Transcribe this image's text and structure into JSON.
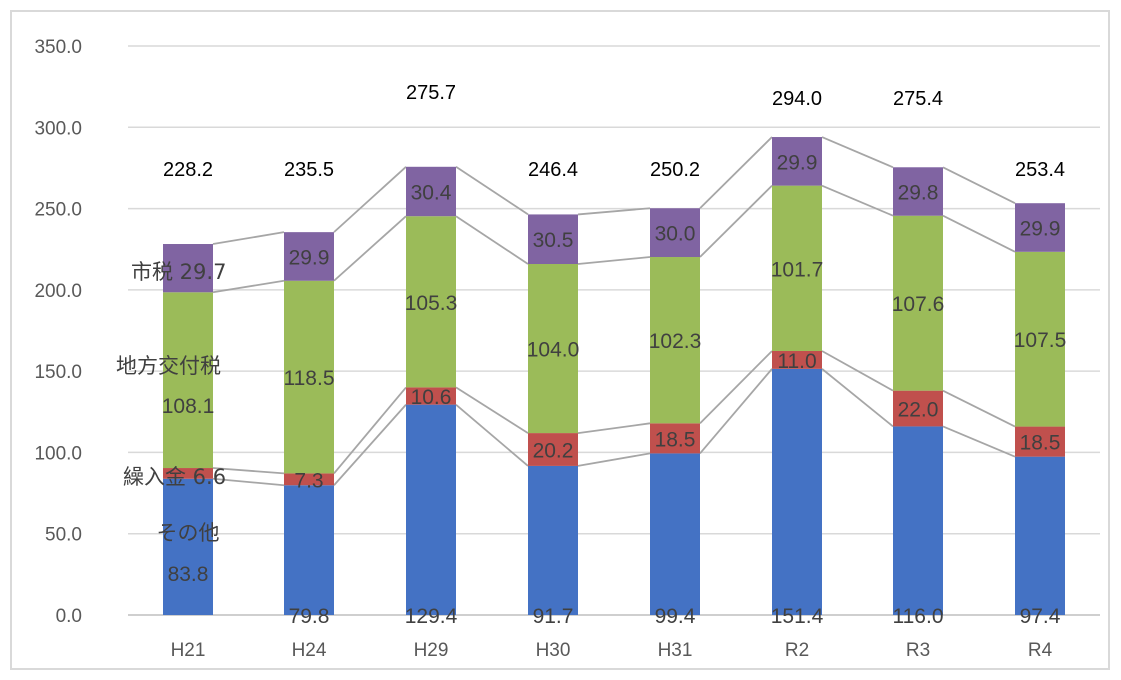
{
  "chart_data": {
    "type": "bar",
    "stacked": true,
    "categories": [
      "H21",
      "H24",
      "H29",
      "H30",
      "H31",
      "R2",
      "R3",
      "R4"
    ],
    "series": [
      {
        "name": "その他",
        "color": "#4472C4",
        "values": [
          83.8,
          79.8,
          129.4,
          91.7,
          99.4,
          151.4,
          116.0,
          97.4
        ],
        "labels": [
          "83.8",
          "79.8",
          "129.4",
          "91.7",
          "99.4",
          "151.4",
          "116.0",
          "97.4"
        ]
      },
      {
        "name": "繰入金",
        "color": "#C0504D",
        "values": [
          6.6,
          7.3,
          10.6,
          20.2,
          18.5,
          11.0,
          22.0,
          18.5
        ],
        "labels": [
          "6.6",
          "7.3",
          "10.6",
          "20.2",
          "18.5",
          "11.0",
          "22.0",
          "18.5"
        ]
      },
      {
        "name": "地方交付税",
        "color": "#9BBB59",
        "values": [
          108.1,
          118.5,
          105.3,
          104.0,
          102.3,
          101.7,
          107.6,
          107.5
        ],
        "labels": [
          "108.1",
          "118.5",
          "105.3",
          "104.0",
          "102.3",
          "101.7",
          "107.6",
          "107.5"
        ]
      },
      {
        "name": "市税",
        "color": "#8064A2",
        "values": [
          29.7,
          29.9,
          30.4,
          30.5,
          30.0,
          29.9,
          29.8,
          29.9
        ],
        "labels": [
          "29.7",
          "29.9",
          "30.4",
          "30.5",
          "30.0",
          "29.9",
          "29.8",
          "29.9"
        ]
      }
    ],
    "totals": [
      "228.2",
      "235.5",
      "275.7",
      "246.4",
      "250.2",
      "294.0",
      "275.4",
      "253.4"
    ],
    "series_labels": {
      "other": "その他",
      "transfer": "繰入金",
      "transfer_value": "6.6",
      "local_tax": "地方交付税",
      "local_tax_value": "108.1",
      "city_tax": "市税",
      "city_tax_value": "29.7",
      "other_value": "83.8"
    },
    "y_ticks": [
      "0.0",
      "50.0",
      "100.0",
      "150.0",
      "200.0",
      "250.0",
      "300.0",
      "350.0"
    ],
    "ylim": [
      0,
      350
    ],
    "grid": true,
    "series_lines": true,
    "legend": "inline labels on first bar",
    "title": "",
    "xlabel": "",
    "ylabel": ""
  }
}
